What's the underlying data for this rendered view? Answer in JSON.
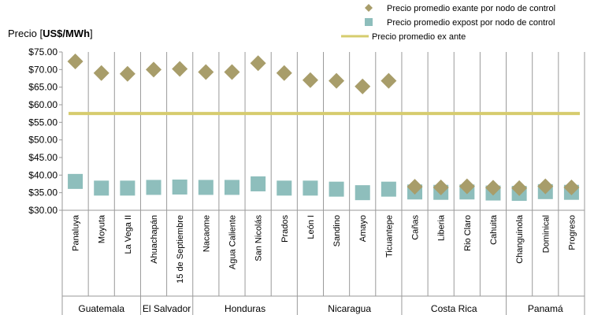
{
  "chart_data": {
    "type": "scatter",
    "ylabel_prefix": "Precio [",
    "ylabel_unit": "US$/MWh",
    "ylabel_suffix": "]",
    "ylim": [
      30,
      75
    ],
    "yticks": [
      30,
      35,
      40,
      45,
      50,
      55,
      60,
      65,
      70,
      75
    ],
    "ytick_labels": [
      "$30.00",
      "$35.00",
      "$40.00",
      "$45.00",
      "$50.00",
      "$55.00",
      "$60.00",
      "$65.00",
      "$70.00",
      "$75.00"
    ],
    "grid": "vertical separators between nodes",
    "legend_position": "top-right",
    "categories": [
      "Panaluya",
      "Moyuta",
      "La Vega II",
      "Ahuachapán",
      "15 de Septiembre",
      "Nacaome",
      "Agua Caliente",
      "San Nicolás",
      "Prados",
      "León I",
      "Sandino",
      "Amayo",
      "Ticuantepe",
      "Cañas",
      "Liberia",
      "Rio Claro",
      "Cahuita",
      "Changuinola",
      "Dominical",
      "Progreso"
    ],
    "groups": [
      {
        "name": "Guatemala",
        "count": 3
      },
      {
        "name": "El Salvador",
        "count": 2
      },
      {
        "name": "Honduras",
        "count": 4
      },
      {
        "name": "Nicaragua",
        "count": 4
      },
      {
        "name": "Costa Rica",
        "count": 4
      },
      {
        "name": "Panamá",
        "count": 3
      }
    ],
    "series": [
      {
        "name": "Precio promedio exante por nodo de control",
        "marker": "diamond",
        "color": "#a89d6a",
        "values": [
          72.3,
          69.0,
          68.8,
          70.0,
          70.2,
          69.3,
          69.3,
          71.8,
          69.0,
          67.0,
          66.8,
          65.2,
          66.8,
          36.7,
          36.5,
          36.8,
          36.4,
          36.3,
          36.8,
          36.5
        ]
      },
      {
        "name": "Precio promedio expost por nodo de control",
        "marker": "square",
        "color": "#8ebebc",
        "values": [
          38.2,
          36.3,
          36.3,
          36.5,
          36.6,
          36.5,
          36.5,
          37.5,
          36.3,
          36.3,
          36.0,
          35.0,
          36.0,
          35.2,
          35.1,
          35.2,
          34.9,
          34.8,
          35.3,
          35.1
        ]
      },
      {
        "name": "Precio promedio ex ante",
        "marker": "line",
        "color": "#d6cc6e",
        "value": 57.5
      }
    ]
  }
}
